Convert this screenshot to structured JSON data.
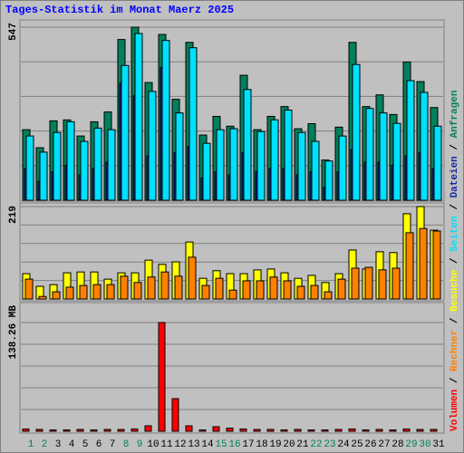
{
  "chart_data": [
    {
      "type": "bar",
      "title": "Tages-Statistik im Monat Maerz 2025",
      "legend_separator": "/",
      "ylim": [
        0,
        547
      ],
      "yticks": [
        547
      ],
      "series": [
        {
          "name": "Anfragen",
          "color": "#00805c",
          "values": [
            223,
            166,
            251,
            254,
            203,
            248,
            279,
            508,
            547,
            372,
            524,
            319,
            499,
            206,
            265,
            234,
            395,
            223,
            265,
            296,
            226,
            242,
            127,
            231,
            499,
            296,
            333,
            271,
            437,
            375,
            293
          ]
        },
        {
          "name": "Dateien",
          "color": "#1428a0",
          "values": [
            100,
            60,
            90,
            110,
            80,
            100,
            120,
            370,
            330,
            140,
            420,
            150,
            170,
            70,
            90,
            80,
            150,
            90,
            100,
            100,
            80,
            90,
            40,
            90,
            160,
            120,
            120,
            110,
            140,
            150,
            100
          ]
        },
        {
          "name": "Seiten",
          "color": "#00e0ff",
          "values": [
            203,
            152,
            214,
            248,
            186,
            228,
            223,
            426,
            527,
            344,
            505,
            276,
            482,
            180,
            223,
            226,
            350,
            217,
            254,
            285,
            214,
            186,
            124,
            203,
            429,
            290,
            276,
            243,
            378,
            341,
            234
          ]
        }
      ]
    },
    {
      "type": "bar",
      "ylim": [
        0,
        219
      ],
      "yticks": [
        219
      ],
      "series": [
        {
          "name": "Besuche",
          "color": "#ffff00",
          "values": [
            60,
            30,
            34,
            62,
            64,
            64,
            47,
            62,
            62,
            92,
            82,
            88,
            135,
            49,
            67,
            60,
            60,
            69,
            71,
            62,
            49,
            56,
            39,
            60,
            116,
            71,
            112,
            110,
            202,
            219,
            163
          ]
        },
        {
          "name": "Rechner",
          "color": "#ff8000",
          "values": [
            47,
            6,
            17,
            28,
            32,
            34,
            34,
            54,
            39,
            52,
            64,
            54,
            99,
            32,
            49,
            21,
            43,
            43,
            52,
            43,
            30,
            32,
            17,
            47,
            73,
            75,
            69,
            73,
            157,
            167,
            161
          ]
        }
      ]
    },
    {
      "type": "bar",
      "ylim": [
        0,
        138.26
      ],
      "yticks": [
        {
          "value": 138.26,
          "label": "138.26 MB"
        }
      ],
      "categories": [
        "1",
        "2",
        "3",
        "4",
        "5",
        "6",
        "7",
        "8",
        "9",
        "10",
        "11",
        "12",
        "13",
        "14",
        "15",
        "16",
        "17",
        "18",
        "19",
        "20",
        "21",
        "22",
        "23",
        "24",
        "25",
        "26",
        "27",
        "28",
        "29",
        "30",
        "31"
      ],
      "category_colors": [
        "#00805c",
        "#00805c",
        "#000000",
        "#000000",
        "#000000",
        "#000000",
        "#000000",
        "#00805c",
        "#00805c",
        "#000000",
        "#000000",
        "#000000",
        "#000000",
        "#000000",
        "#00805c",
        "#00805c",
        "#000000",
        "#000000",
        "#000000",
        "#000000",
        "#000000",
        "#00805c",
        "#00805c",
        "#000000",
        "#000000",
        "#000000",
        "#000000",
        "#000000",
        "#00805c",
        "#00805c",
        "#000000"
      ],
      "series": [
        {
          "name": "Volumen",
          "color": "#ff0000",
          "values": [
            2.9,
            2.3,
            1.7,
            1.7,
            2.3,
            1.7,
            2.3,
            2.3,
            2.9,
            6.9,
            138.26,
            41.5,
            6.9,
            1.7,
            5.8,
            4.0,
            2.9,
            2.3,
            2.3,
            1.7,
            2.3,
            1.7,
            1.7,
            2.3,
            2.9,
            1.7,
            2.3,
            1.7,
            2.9,
            2.3,
            2.3
          ]
        }
      ]
    }
  ]
}
